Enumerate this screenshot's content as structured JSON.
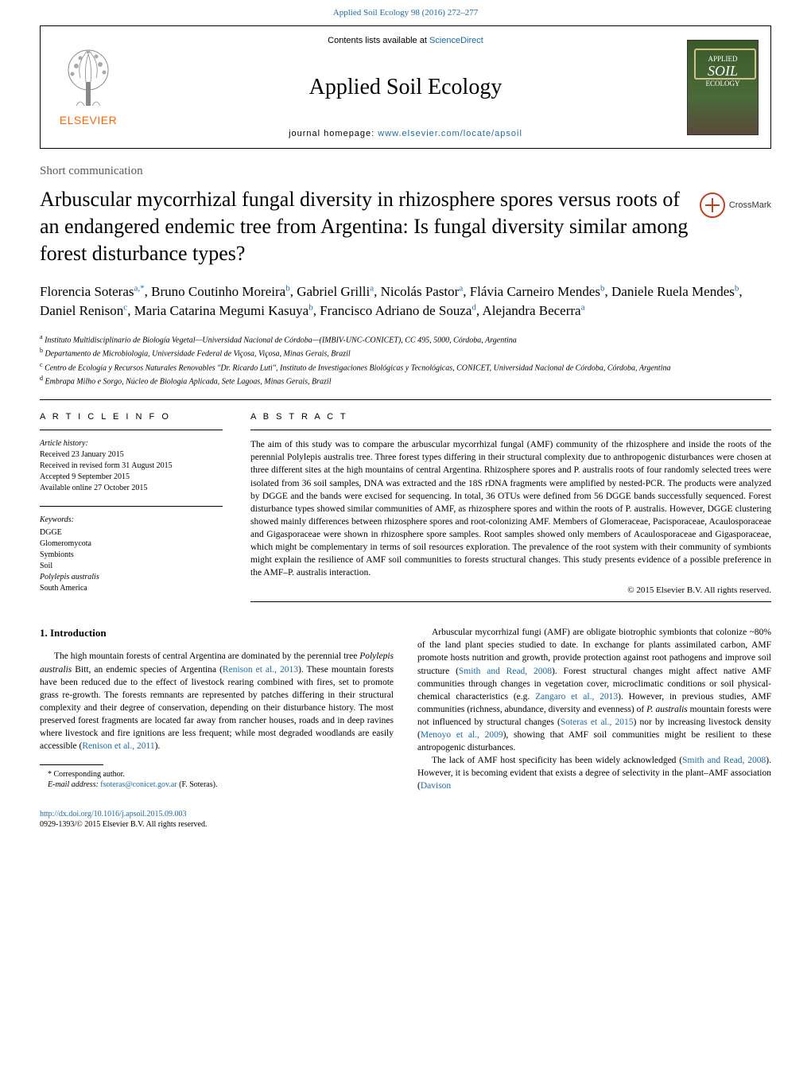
{
  "top_link": "Applied Soil Ecology 98 (2016) 272–277",
  "header": {
    "contents_prefix": "Contents lists available at ",
    "contents_link": "ScienceDirect",
    "journal_name": "Applied Soil Ecology",
    "homepage_prefix": "journal homepage: ",
    "homepage_link": "www.elsevier.com/locate/apsoil",
    "elsevier": "ELSEVIER",
    "cover_top": "APPLIED",
    "cover_main": "SOIL",
    "cover_sub": "ECOLOGY"
  },
  "article_type": "Short communication",
  "title": "Arbuscular mycorrhizal fungal diversity in rhizosphere spores versus roots of an endangered endemic tree from Argentina: Is fungal diversity similar among forest disturbance types?",
  "crossmark": "CrossMark",
  "authors_html": "Florencia Soteras<sup>a,*</sup>, Bruno Coutinho Moreira<sup>b</sup>, Gabriel Grilli<sup>a</sup>, Nicolás Pastor<sup>a</sup>, Flávia Carneiro Mendes<sup>b</sup>, Daniele Ruela Mendes<sup>b</sup>, Daniel Renison<sup>c</sup>, Maria Catarina Megumi Kasuya<sup>b</sup>, Francisco Adriano de Souza<sup>d</sup>, Alejandra Becerra<sup>a</sup>",
  "affiliations": [
    {
      "sup": "a",
      "text": "Instituto Multidisciplinario de Biología Vegetal—Universidad Nacional de Córdoba—(IMBIV-UNC-CONICET), CC 495, 5000, Córdoba, Argentina"
    },
    {
      "sup": "b",
      "text": "Departamento de Microbiologia, Universidade Federal de Viçosa, Viçosa, Minas Gerais, Brazil"
    },
    {
      "sup": "c",
      "text": "Centro de Ecología y Recursos Naturales Renovables \"Dr. Ricardo Luti\", Instituto de Investigaciones Biológicas y Tecnológicas, CONICET, Universidad Nacional de Córdoba, Córdoba, Argentina"
    },
    {
      "sup": "d",
      "text": "Embrapa Milho e Sorgo, Núcleo de Biologia Aplicada, Sete Lagoas, Minas Gerais, Brazil"
    }
  ],
  "info": {
    "label": "A R T I C L E   I N F O",
    "history_label": "Article history:",
    "received": "Received 23 January 2015",
    "revised": "Received in revised form 31 August 2015",
    "accepted": "Accepted 9 September 2015",
    "online": "Available online 27 October 2015",
    "keywords_label": "Keywords:",
    "keywords": [
      "DGGE",
      "Glomeromycota",
      "Symbionts",
      "Soil",
      "Polylepis australis",
      "South America"
    ]
  },
  "abstract": {
    "label": "A B S T R A C T",
    "text": "The aim of this study was to compare the arbuscular mycorrhizal fungal (AMF) community of the rhizosphere and inside the roots of the perennial Polylepis australis tree. Three forest types differing in their structural complexity due to anthropogenic disturbances were chosen at three different sites at the high mountains of central Argentina. Rhizosphere spores and P. australis roots of four randomly selected trees were isolated from 36 soil samples, DNA was extracted and the 18S rDNA fragments were amplified by nested-PCR. The products were analyzed by DGGE and the bands were excised for sequencing. In total, 36 OTUs were defined from 56 DGGE bands successfully sequenced. Forest disturbance types showed similar communities of AMF, as rhizosphere spores and within the roots of P. australis. However, DGGE clustering showed mainly differences between rhizosphere spores and root-colonizing AMF. Members of Glomeraceae, Pacisporaceae, Acaulosporaceae and Gigasporaceae were shown in rhizosphere spore samples. Root samples showed only members of Acaulosporaceae and Gigasporaceae, which might be complementary in terms of soil resources exploration. The prevalence of the root system with their community of symbionts might explain the resilience of AMF soil communities to forests structural changes. This study presents evidence of a possible preference in the AMF–P. australis interaction.",
    "copyright": "© 2015 Elsevier B.V. All rights reserved."
  },
  "intro": {
    "heading": "1. Introduction",
    "p1_html": "The high mountain forests of central Argentina are dominated by the perennial tree <em>Polylepis australis</em> Bitt, an endemic species of Argentina (<a>Renison et al., 2013</a>). These mountain forests have been reduced due to the effect of livestock rearing combined with fires, set to promote grass re-growth. The forests remnants are represented by patches differing in their structural complexity and their degree of conservation, depending on their disturbance history. The most preserved forest fragments are located far away from rancher houses, roads and in deep ravines where livestock and fire ignitions are less frequent; while most degraded woodlands are easily accessible (<a>Renison et al., 2011</a>).",
    "p2_html": "Arbuscular mycorrhizal fungi (AMF) are obligate biotrophic symbionts that colonize ~80% of the land plant species studied to date. In exchange for plants assimilated carbon, AMF promote hosts nutrition and growth, provide protection against root pathogens and improve soil structure (<a>Smith and Read, 2008</a>). Forest structural changes might affect native AMF communities through changes in vegetation cover, microclimatic conditions or soil physical-chemical characteristics (e.g. <a>Zangaro et al., 2013</a>). However, in previous studies, AMF communities (richness, abundance, diversity and evenness) of <em>P. australis</em> mountain forests were not influenced by structural changes (<a>Soteras et al., 2015</a>) nor by increasing livestock density (<a>Menoyo et al., 2009</a>), showing that AMF soil communities might be resilient to these antropogenic disturbances.",
    "p3_html": "The lack of AMF host specificity has been widely acknowledged (<a>Smith and Read, 2008</a>). However, it is becoming evident that exists a degree of selectivity in the plant–AMF association (<a>Davison</a>"
  },
  "footnote": {
    "corr": "* Corresponding author.",
    "email_label": "E-mail address: ",
    "email": "fsoteras@conicet.gov.ar",
    "email_suffix": " (F. Soteras)."
  },
  "footer": {
    "doi": "http://dx.doi.org/10.1016/j.apsoil.2015.09.003",
    "issn": "0929-1393/© 2015 Elsevier B.V. All rights reserved."
  },
  "style": {
    "link_color": "#1a6ba8",
    "elsevier_orange": "#ff6600",
    "crossmark_color": "#c04020",
    "text_color": "#000000",
    "bg": "#ffffff"
  }
}
